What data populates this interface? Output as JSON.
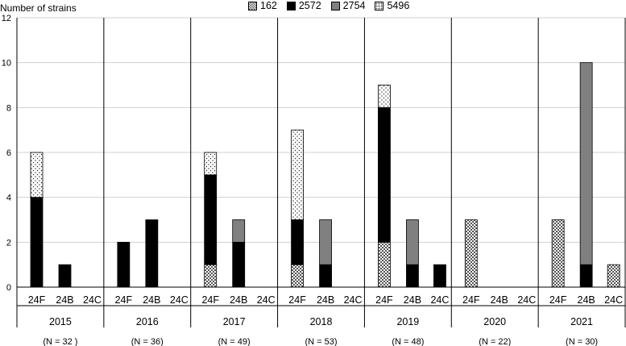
{
  "chart_data": {
    "type": "bar",
    "stacked": true,
    "ylabel": "Number of strains",
    "ylim": [
      0,
      12
    ],
    "yticks": [
      0,
      2,
      4,
      6,
      8,
      10,
      12
    ],
    "grid": true,
    "legend_position": "top",
    "series": [
      {
        "name": "162",
        "pattern": "checker",
        "values": [
          0,
          0,
          0,
          0,
          0,
          0,
          1,
          0,
          0,
          1,
          0,
          0,
          2,
          0,
          0,
          3,
          0,
          0,
          3,
          0,
          1
        ]
      },
      {
        "name": "2572",
        "color": "#000000",
        "values": [
          4,
          1,
          0,
          2,
          3,
          0,
          4,
          2,
          0,
          2,
          1,
          0,
          6,
          1,
          1,
          0,
          0,
          0,
          0,
          1,
          0
        ]
      },
      {
        "name": "2754",
        "color": "#808080",
        "values": [
          0,
          0,
          0,
          0,
          0,
          0,
          0,
          1,
          0,
          0,
          2,
          0,
          0,
          2,
          0,
          0,
          0,
          0,
          0,
          9,
          0
        ]
      },
      {
        "name": "5496",
        "pattern": "dots",
        "values": [
          2,
          0,
          0,
          0,
          0,
          0,
          1,
          0,
          0,
          4,
          0,
          0,
          1,
          0,
          0,
          0,
          0,
          0,
          0,
          0,
          0
        ]
      }
    ],
    "groups": [
      {
        "year": "2015",
        "n_label": "(N = 32 )",
        "categories": [
          "24F",
          "24B",
          "24C"
        ]
      },
      {
        "year": "2016",
        "n_label": "(N = 36)",
        "categories": [
          "24F",
          "24B",
          "24C"
        ]
      },
      {
        "year": "2017",
        "n_label": "(N = 49)",
        "categories": [
          "24F",
          "24B",
          "24C"
        ]
      },
      {
        "year": "2018",
        "n_label": "(N = 53)",
        "categories": [
          "24F",
          "24B",
          "24C"
        ]
      },
      {
        "year": "2019",
        "n_label": "(N = 48)",
        "categories": [
          "24F",
          "24B",
          "24C"
        ]
      },
      {
        "year": "2020",
        "n_label": "(N = 22)",
        "categories": [
          "24F",
          "24B",
          "24C"
        ]
      },
      {
        "year": "2021",
        "n_label": "(N = 30)",
        "categories": [
          "24F",
          "24B",
          "24C"
        ]
      }
    ]
  }
}
